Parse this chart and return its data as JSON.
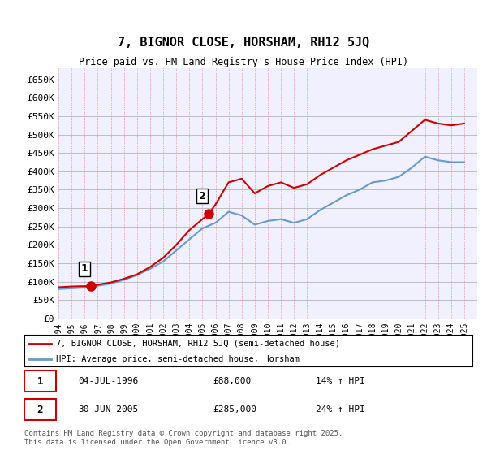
{
  "title": "7, BIGNOR CLOSE, HORSHAM, RH12 5JQ",
  "subtitle": "Price paid vs. HM Land Registry's House Price Index (HPI)",
  "ylabel": "",
  "ylim": [
    0,
    680000
  ],
  "yticks": [
    0,
    50000,
    100000,
    150000,
    200000,
    250000,
    300000,
    350000,
    400000,
    450000,
    500000,
    550000,
    600000,
    650000
  ],
  "ytick_labels": [
    "£0",
    "£50K",
    "£100K",
    "£150K",
    "£200K",
    "£250K",
    "£300K",
    "£350K",
    "£400K",
    "£450K",
    "£500K",
    "£550K",
    "£600K",
    "£650K"
  ],
  "xlim_start": 1994,
  "xlim_end": 2026,
  "background_color": "#ffffff",
  "plot_background": "#f0f0ff",
  "grid_color": "#ff9999",
  "grid_style": "dotted",
  "line1_color": "#cc0000",
  "line2_color": "#6699cc",
  "marker1_color": "#cc0000",
  "sale1_x": 1996.5,
  "sale1_y": 88000,
  "sale1_label": "1",
  "sale2_x": 2005.5,
  "sale2_y": 285000,
  "sale2_label": "2",
  "legend1_text": "7, BIGNOR CLOSE, HORSHAM, RH12 5JQ (semi-detached house)",
  "legend2_text": "HPI: Average price, semi-detached house, Horsham",
  "annotation1_date": "04-JUL-1996",
  "annotation1_price": "£88,000",
  "annotation1_hpi": "14% ↑ HPI",
  "annotation2_date": "30-JUN-2005",
  "annotation2_price": "£285,000",
  "annotation2_hpi": "24% ↑ HPI",
  "footer": "Contains HM Land Registry data © Crown copyright and database right 2025.\nThis data is licensed under the Open Government Licence v3.0.",
  "red_line_x": [
    1994,
    1995,
    1996,
    1996.5,
    1997,
    1998,
    1999,
    2000,
    2001,
    2002,
    2003,
    2004,
    2005,
    2005.5,
    2006,
    2007,
    2008,
    2009,
    2010,
    2011,
    2012,
    2013,
    2014,
    2015,
    2016,
    2017,
    2018,
    2019,
    2020,
    2021,
    2022,
    2023,
    2024,
    2025
  ],
  "red_line_y": [
    85000,
    87000,
    88000,
    88000,
    92000,
    98000,
    108000,
    120000,
    140000,
    165000,
    200000,
    240000,
    270000,
    285000,
    310000,
    370000,
    380000,
    340000,
    360000,
    370000,
    355000,
    365000,
    390000,
    410000,
    430000,
    445000,
    460000,
    470000,
    480000,
    510000,
    540000,
    530000,
    525000,
    530000
  ],
  "blue_line_x": [
    1994,
    1995,
    1996,
    1997,
    1998,
    1999,
    2000,
    2001,
    2002,
    2003,
    2004,
    2005,
    2006,
    2007,
    2008,
    2009,
    2010,
    2011,
    2012,
    2013,
    2014,
    2015,
    2016,
    2017,
    2018,
    2019,
    2020,
    2021,
    2022,
    2023,
    2024,
    2025
  ],
  "blue_line_y": [
    80000,
    82000,
    84000,
    89000,
    95000,
    105000,
    118000,
    135000,
    155000,
    185000,
    215000,
    245000,
    260000,
    290000,
    280000,
    255000,
    265000,
    270000,
    260000,
    270000,
    295000,
    315000,
    335000,
    350000,
    370000,
    375000,
    385000,
    410000,
    440000,
    430000,
    425000,
    425000
  ]
}
